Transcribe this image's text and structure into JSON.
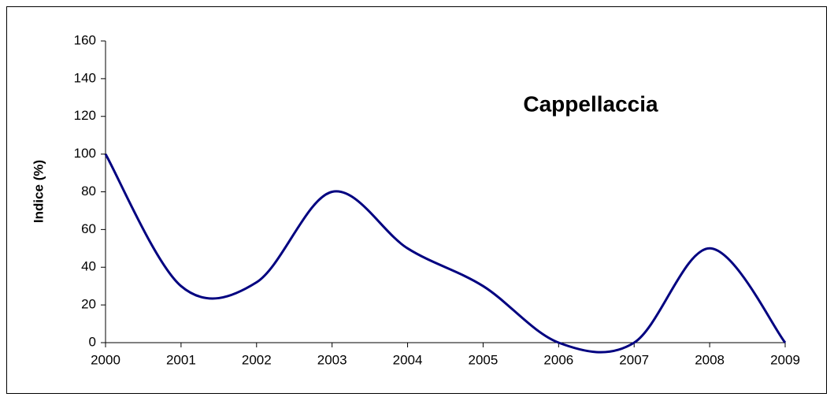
{
  "chart_data": {
    "type": "line",
    "title": "Cappellaccia",
    "y_label": "Indice (%)",
    "x": [
      2000,
      2001,
      2002,
      2003,
      2004,
      2005,
      2006,
      2007,
      2008,
      2009
    ],
    "series": [
      {
        "name": "Cappellaccia",
        "color": "#000080",
        "values": [
          100,
          30,
          32,
          80,
          50,
          30,
          0,
          0,
          50,
          0
        ]
      }
    ],
    "xlim": [
      2000,
      2009
    ],
    "xticks": [
      2000,
      2001,
      2002,
      2003,
      2004,
      2005,
      2006,
      2007,
      2008,
      2009
    ],
    "ylim": [
      0,
      160
    ],
    "yticks": [
      0,
      20,
      40,
      60,
      80,
      100,
      120,
      140,
      160
    ],
    "smooth": true
  }
}
